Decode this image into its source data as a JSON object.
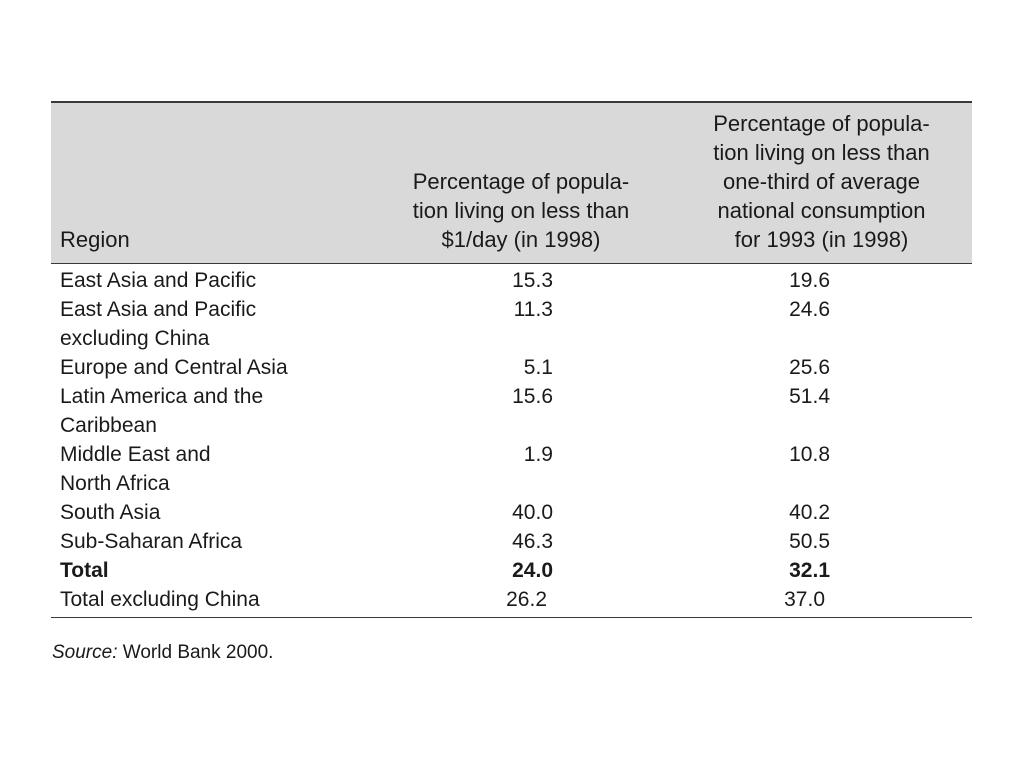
{
  "table": {
    "headers": {
      "region": "Region",
      "col_a_lines": [
        "Percentage of popula-",
        "tion living on less than",
        "$1/day (in 1998)"
      ],
      "col_b_lines": [
        "Percentage of popula-",
        "tion living on less than",
        "one-third of average",
        "national consumption",
        "for 1993 (in 1998)"
      ]
    },
    "rows": [
      {
        "region_lines": [
          "East Asia and Pacific"
        ],
        "a": "15.3",
        "b": "19.6"
      },
      {
        "region_lines": [
          "East Asia and Pacific",
          "excluding China"
        ],
        "a": "11.3",
        "b": "24.6"
      },
      {
        "region_lines": [
          "Europe and Central Asia"
        ],
        "a": "5.1",
        "b": "25.6"
      },
      {
        "region_lines": [
          "Latin America and the",
          "Caribbean"
        ],
        "a": "15.6",
        "b": "51.4"
      },
      {
        "region_lines": [
          "Middle East and",
          "North Africa"
        ],
        "a": "1.9",
        "b": "10.8"
      },
      {
        "region_lines": [
          "South Asia"
        ],
        "a": "40.0",
        "b": "40.2"
      },
      {
        "region_lines": [
          "Sub-Saharan Africa"
        ],
        "a": "46.3",
        "b": "50.5"
      },
      {
        "region_lines": [
          "Total"
        ],
        "a": "24.0",
        "b": "32.1"
      },
      {
        "region_lines": [
          "Total excluding China"
        ],
        "a": "26.2",
        "b": "37.0"
      }
    ]
  },
  "source": {
    "label": "Source:",
    "text": " World Bank 2000."
  }
}
